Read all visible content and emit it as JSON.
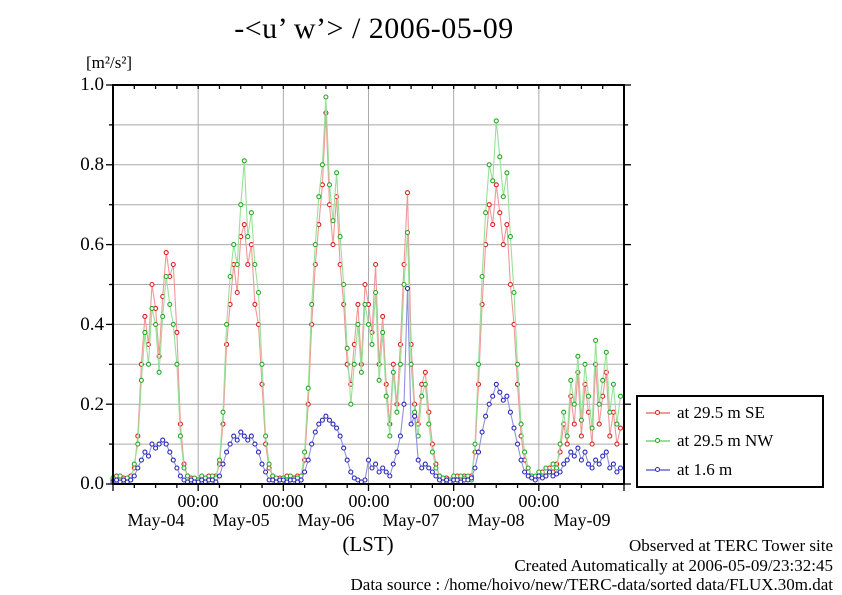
{
  "title": "-<u’ w’> / 2006-05-09",
  "unit_label": "[m²/s²]",
  "axes": {
    "y_tick_labels": [
      "1.0",
      "0.8",
      "0.6",
      "0.4",
      "0.2",
      "0.0"
    ],
    "x_time_labels": [
      "00:00",
      "00:00",
      "00:00",
      "00:00",
      "00:00"
    ],
    "x_day_labels": [
      "May-04",
      "May-05",
      "May-06",
      "May-07",
      "May-08",
      "May-09"
    ],
    "x_axis_label": "(LST)"
  },
  "legend": {
    "items": [
      {
        "label": "at 29.5 m SE",
        "color": "#dd2020",
        "line_color": "#f09898"
      },
      {
        "label": "at 29.5 m NW",
        "color": "#22aa22",
        "line_color": "#98e098"
      },
      {
        "label": "at 1.6 m",
        "color": "#2828bb",
        "line_color": "#9090dd"
      }
    ]
  },
  "footer": {
    "line1": "Observed at TERC Tower site",
    "line2": "Created Automatically at 2006-05-09/23:32:45",
    "line3": "Data source : /home/hoivo/new/TERC-data/sorted  data/FLUX.30m.dat"
  },
  "chart_data": {
    "type": "line",
    "title": "-<u’ w’> / 2006-05-09",
    "ylabel": "[m²/s²]",
    "xlabel": "(LST)",
    "ylim": [
      0.0,
      1.0
    ],
    "y_ticks": [
      0.0,
      0.2,
      0.4,
      0.6,
      0.8,
      1.0
    ],
    "y_minor_step": 0.1,
    "grid": true,
    "grid_color": "#aaaaaa",
    "legend_position": "outside-right-bottom",
    "x_unit": "hourly samples, hours since 2006-05-04 00:00 LST",
    "x_count": 144,
    "x_day_labels": [
      "May-04",
      "May-05",
      "May-06",
      "May-07",
      "May-08",
      "May-09"
    ],
    "x_day_boundary_labels": [
      "00:00",
      "00:00",
      "00:00",
      "00:00",
      "00:00"
    ],
    "series": [
      {
        "name": "at 29.5 m SE",
        "marker_color": "#dd2020",
        "line_color": "#f09898",
        "values": [
          0.01,
          0.02,
          0.01,
          0.015,
          0.01,
          0.02,
          0.04,
          0.12,
          0.3,
          0.42,
          0.35,
          0.5,
          0.44,
          0.32,
          0.47,
          0.58,
          0.52,
          0.55,
          0.38,
          0.15,
          0.05,
          0.02,
          0.015,
          0.01,
          0.01,
          0.015,
          0.01,
          0.02,
          0.01,
          0.02,
          0.05,
          0.15,
          0.35,
          0.45,
          0.55,
          0.48,
          0.62,
          0.65,
          0.55,
          0.6,
          0.45,
          0.4,
          0.25,
          0.1,
          0.04,
          0.02,
          0.01,
          0.015,
          0.01,
          0.02,
          0.01,
          0.015,
          0.02,
          0.01,
          0.06,
          0.2,
          0.4,
          0.55,
          0.65,
          0.75,
          0.93,
          0.7,
          0.6,
          0.72,
          0.55,
          0.45,
          0.3,
          0.25,
          0.35,
          0.45,
          0.3,
          0.5,
          0.45,
          0.38,
          0.55,
          0.3,
          0.42,
          0.25,
          0.15,
          0.3,
          0.2,
          0.35,
          0.55,
          0.73,
          0.35,
          0.2,
          0.15,
          0.25,
          0.28,
          0.18,
          0.1,
          0.05,
          0.02,
          0.01,
          0.015,
          0.01,
          0.01,
          0.02,
          0.01,
          0.02,
          0.015,
          0.02,
          0.08,
          0.25,
          0.45,
          0.6,
          0.7,
          0.65,
          0.75,
          0.68,
          0.6,
          0.65,
          0.5,
          0.4,
          0.25,
          0.12,
          0.06,
          0.03,
          0.02,
          0.015,
          0.02,
          0.03,
          0.02,
          0.04,
          0.03,
          0.05,
          0.08,
          0.15,
          0.1,
          0.22,
          0.15,
          0.28,
          0.12,
          0.25,
          0.18,
          0.1,
          0.3,
          0.15,
          0.22,
          0.28,
          0.12,
          0.18,
          0.1,
          0.14
        ]
      },
      {
        "name": "at 29.5 m NW",
        "marker_color": "#22aa22",
        "line_color": "#98e098",
        "values": [
          0.015,
          0.01,
          0.02,
          0.01,
          0.015,
          0.01,
          0.05,
          0.1,
          0.26,
          0.38,
          0.3,
          0.44,
          0.4,
          0.28,
          0.42,
          0.52,
          0.45,
          0.4,
          0.3,
          0.12,
          0.04,
          0.02,
          0.01,
          0.015,
          0.01,
          0.02,
          0.015,
          0.01,
          0.02,
          0.015,
          0.06,
          0.18,
          0.4,
          0.52,
          0.6,
          0.55,
          0.7,
          0.81,
          0.62,
          0.68,
          0.55,
          0.48,
          0.3,
          0.12,
          0.05,
          0.02,
          0.015,
          0.01,
          0.015,
          0.01,
          0.02,
          0.01,
          0.015,
          0.02,
          0.08,
          0.24,
          0.45,
          0.6,
          0.72,
          0.8,
          0.97,
          0.75,
          0.66,
          0.78,
          0.62,
          0.5,
          0.34,
          0.2,
          0.3,
          0.4,
          0.28,
          0.45,
          0.4,
          0.35,
          0.48,
          0.26,
          0.38,
          0.22,
          0.12,
          0.28,
          0.18,
          0.3,
          0.5,
          0.63,
          0.3,
          0.18,
          0.12,
          0.22,
          0.25,
          0.15,
          0.08,
          0.04,
          0.02,
          0.015,
          0.01,
          0.01,
          0.02,
          0.01,
          0.02,
          0.015,
          0.02,
          0.01,
          0.1,
          0.3,
          0.52,
          0.68,
          0.8,
          0.76,
          0.91,
          0.82,
          0.72,
          0.78,
          0.62,
          0.48,
          0.3,
          0.15,
          0.08,
          0.04,
          0.02,
          0.02,
          0.03,
          0.02,
          0.04,
          0.03,
          0.05,
          0.04,
          0.1,
          0.18,
          0.12,
          0.26,
          0.2,
          0.32,
          0.16,
          0.3,
          0.22,
          0.14,
          0.36,
          0.2,
          0.26,
          0.33,
          0.18,
          0.25,
          0.15,
          0.22
        ]
      },
      {
        "name": "at 1.6 m",
        "marker_color": "#2828bb",
        "line_color": "#9090dd",
        "values": [
          0.005,
          0.01,
          0.005,
          0.01,
          0.005,
          0.01,
          0.02,
          0.04,
          0.06,
          0.08,
          0.07,
          0.1,
          0.09,
          0.1,
          0.11,
          0.1,
          0.08,
          0.06,
          0.04,
          0.02,
          0.01,
          0.005,
          0.01,
          0.005,
          0.005,
          0.01,
          0.005,
          0.01,
          0.01,
          0.005,
          0.02,
          0.05,
          0.08,
          0.1,
          0.12,
          0.11,
          0.13,
          0.12,
          0.11,
          0.12,
          0.1,
          0.08,
          0.05,
          0.03,
          0.01,
          0.01,
          0.005,
          0.01,
          0.01,
          0.005,
          0.01,
          0.01,
          0.005,
          0.01,
          0.03,
          0.06,
          0.1,
          0.13,
          0.15,
          0.16,
          0.17,
          0.16,
          0.15,
          0.14,
          0.12,
          0.09,
          0.06,
          0.03,
          0.015,
          0.01,
          0.005,
          0.01,
          0.06,
          0.04,
          0.05,
          0.03,
          0.04,
          0.03,
          0.02,
          0.05,
          0.08,
          0.12,
          0.2,
          0.49,
          0.15,
          0.17,
          0.06,
          0.04,
          0.05,
          0.04,
          0.03,
          0.02,
          0.01,
          0.005,
          0.01,
          0.005,
          0.01,
          0.01,
          0.005,
          0.01,
          0.01,
          0.015,
          0.04,
          0.08,
          0.13,
          0.17,
          0.2,
          0.22,
          0.25,
          0.23,
          0.21,
          0.22,
          0.18,
          0.14,
          0.1,
          0.06,
          0.03,
          0.02,
          0.015,
          0.01,
          0.02,
          0.015,
          0.02,
          0.03,
          0.02,
          0.025,
          0.03,
          0.05,
          0.06,
          0.08,
          0.07,
          0.09,
          0.06,
          0.08,
          0.05,
          0.04,
          0.06,
          0.05,
          0.07,
          0.08,
          0.04,
          0.05,
          0.03,
          0.04
        ]
      }
    ]
  }
}
